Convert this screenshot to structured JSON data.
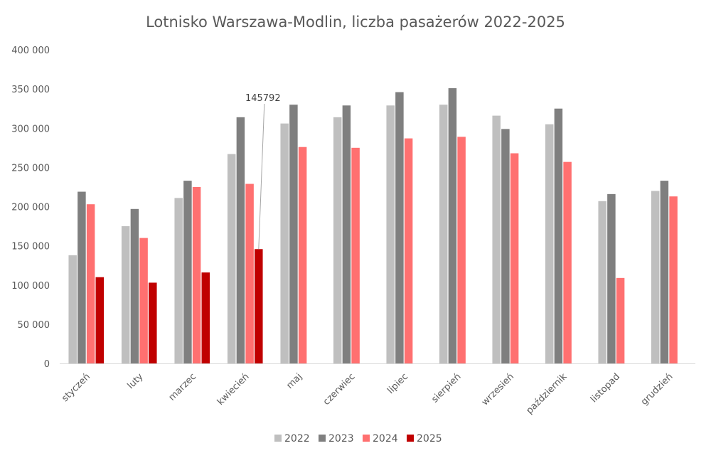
{
  "chart_data": {
    "type": "bar",
    "title": "Lotnisko Warszawa-Modlin, liczba pasażerów 2022-2025",
    "xlabel": "",
    "ylabel": "",
    "ylim": [
      0,
      400000
    ],
    "yticks": [
      0,
      50000,
      100000,
      150000,
      200000,
      250000,
      300000,
      350000,
      400000
    ],
    "ytick_labels": [
      "0",
      "50 000",
      "100 000",
      "150 000",
      "200 000",
      "250 000",
      "300 000",
      "350 000",
      "400 000"
    ],
    "grid": false,
    "legend_position": "bottom",
    "categories": [
      "styczeń",
      "luty",
      "marzec",
      "kwiecień",
      "maj",
      "czerwiec",
      "lipiec",
      "sierpień",
      "wrzesień",
      "październik",
      "listopad",
      "grudzień"
    ],
    "series": [
      {
        "name": "2022",
        "color": "#bfbfbf",
        "values": [
          138000,
          175000,
          211000,
          267000,
          306000,
          314000,
          329000,
          330000,
          316000,
          305000,
          207000,
          220000
        ]
      },
      {
        "name": "2023",
        "color": "#7f7f7f",
        "values": [
          219000,
          197000,
          233000,
          314000,
          330000,
          329000,
          346000,
          351000,
          299000,
          325000,
          216000,
          233000
        ]
      },
      {
        "name": "2024",
        "color": "#ff7070",
        "values": [
          203000,
          160000,
          225000,
          229000,
          276000,
          275000,
          287000,
          289000,
          268000,
          257000,
          109000,
          213000
        ]
      },
      {
        "name": "2025",
        "color": "#c00000",
        "values": [
          110000,
          103000,
          116000,
          145792,
          null,
          null,
          null,
          null,
          null,
          null,
          null,
          null
        ]
      }
    ],
    "annotations": [
      {
        "text": "145792",
        "series": "2025",
        "category": "kwiecień"
      }
    ]
  }
}
